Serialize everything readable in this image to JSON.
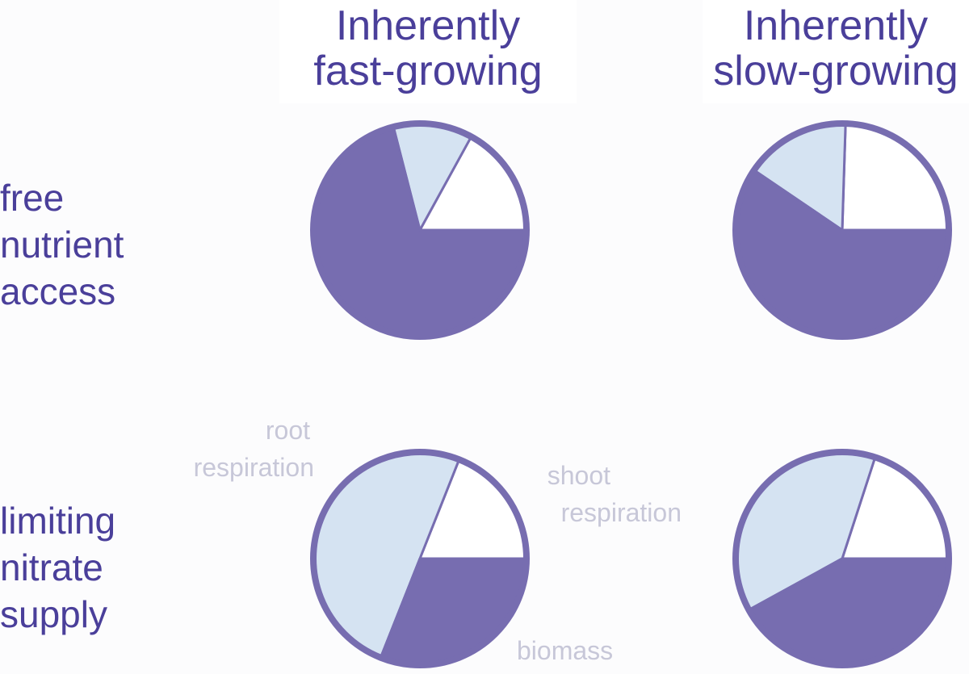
{
  "column_headers": [
    {
      "line1": "Inherently",
      "line2": "fast-growing"
    },
    {
      "line1": "Inherently",
      "line2": "slow-growing"
    }
  ],
  "row_headers": [
    {
      "lines": [
        "free",
        "nutrient",
        "access"
      ]
    },
    {
      "lines": [
        "limiting",
        "nitrate",
        "supply"
      ]
    }
  ],
  "annotations": {
    "root_respiration": [
      "root",
      "respiration"
    ],
    "shoot_respiration": [
      "shoot",
      "respiration"
    ],
    "biomass": "biomass"
  },
  "colors": {
    "biomass": "#776db0",
    "root_respiration": "#d5e3f2",
    "shoot_respiration": "#ffffff",
    "outline": "#776db0",
    "header_text": "#4a3f9a",
    "annotation_text": "#c7c7d8"
  },
  "chart_data": [
    {
      "type": "pie",
      "row": "free nutrient access",
      "column": "Inherently fast-growing",
      "slices": [
        {
          "category": "shoot respiration",
          "percent": 17
        },
        {
          "category": "root respiration",
          "percent": 12
        },
        {
          "category": "biomass",
          "percent": 71
        }
      ]
    },
    {
      "type": "pie",
      "row": "free nutrient access",
      "column": "Inherently slow-growing",
      "slices": [
        {
          "category": "shoot respiration",
          "percent": 24.5
        },
        {
          "category": "root respiration",
          "percent": 16
        },
        {
          "category": "biomass",
          "percent": 59.5
        }
      ]
    },
    {
      "type": "pie",
      "row": "limiting nitrate supply",
      "column": "Inherently fast-growing",
      "slices": [
        {
          "category": "shoot respiration",
          "percent": 19
        },
        {
          "category": "root respiration",
          "percent": 50
        },
        {
          "category": "biomass",
          "percent": 31
        }
      ]
    },
    {
      "type": "pie",
      "row": "limiting nitrate supply",
      "column": "Inherently slow-growing",
      "slices": [
        {
          "category": "shoot respiration",
          "percent": 20
        },
        {
          "category": "root respiration",
          "percent": 38
        },
        {
          "category": "biomass",
          "percent": 42
        }
      ]
    }
  ]
}
